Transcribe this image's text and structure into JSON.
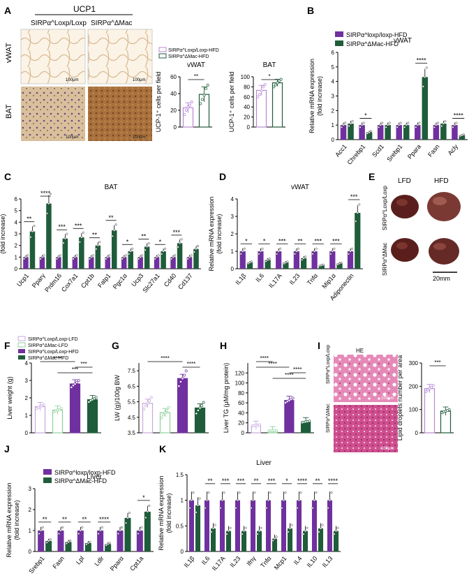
{
  "colors": {
    "purple": "#7030a0",
    "green": "#1f5c3a",
    "lpurple": "#c9a8e0",
    "lgreen": "#8fd19e",
    "he": "#d46aa3",
    "he2": "#b03a78",
    "ucp_light": "#f3e4cf",
    "ucp_dark": "#a6713c"
  },
  "legend": {
    "loxp_hfd": "SIRPα^Loxp/Loxp-HFD",
    "mac_hfd": "SIRPα^ΔMac-HFD",
    "loxp_lfd": "SIRPα^Loxp/Loxp-LFD",
    "mac_lfd": "SIRPα^ΔMac-LFD"
  },
  "panel_letters": [
    "A",
    "B",
    "C",
    "D",
    "E",
    "F",
    "G",
    "H",
    "I",
    "J",
    "K"
  ],
  "panelA": {
    "ucp1": "UCP1",
    "col1": "SIRPα^Loxp/Loxp",
    "col2": "SIRPα^ΔMac",
    "row1": "vWAT",
    "row2": "BAT",
    "scale": "100μm"
  },
  "panelE": {
    "lfd": "LFD",
    "hfd": "HFD",
    "row1": "SIRPα^Loxp/Loxp",
    "row2": "SIRPα^ΔMac",
    "scale": "20mm"
  },
  "panelI": {
    "he": "HE",
    "row1": "SIRPα^Loxp/Loxp",
    "row2": "SIRPα^ΔMac",
    "scale": "100μm"
  },
  "chart_data": [
    {
      "id": "A1",
      "type": "bar",
      "title": "vWAT",
      "ylabel": "UCP-1⁺ cells per field",
      "ylim": [
        0,
        60
      ],
      "yticks": [
        0,
        20,
        40,
        60
      ],
      "categories": [
        "SIRPα^Loxp/Loxp-HFD",
        "SIRPα^ΔMac-HFD"
      ],
      "values": [
        23,
        39
      ],
      "errors": [
        6,
        9
      ],
      "points": [
        [
          15,
          20,
          24,
          26,
          30
        ],
        [
          28,
          33,
          38,
          46,
          50
        ]
      ],
      "sig": [
        {
          "a": 0,
          "b": 1,
          "label": "**"
        }
      ]
    },
    {
      "id": "A2",
      "type": "bar",
      "title": "BAT",
      "ylabel": "UCP-1⁺ cells per field",
      "ylim": [
        0,
        100
      ],
      "yticks": [
        0,
        20,
        40,
        60,
        80,
        100
      ],
      "categories": [
        "SIRPα^Loxp/Loxp-HFD",
        "SIRPα^ΔMac-HFD"
      ],
      "values": [
        73,
        88
      ],
      "errors": [
        10,
        7
      ],
      "points": [
        [
          60,
          65,
          72,
          80,
          85
        ],
        [
          80,
          84,
          88,
          92,
          95
        ]
      ],
      "sig": [
        {
          "a": 0,
          "b": 1,
          "label": "*"
        }
      ]
    },
    {
      "id": "B",
      "type": "bar",
      "title": "vWAT",
      "ylabel": "Relative mRNA expression\n(fold increase)",
      "ylim": [
        0,
        6
      ],
      "yticks": [
        0,
        1,
        2,
        3,
        4,
        5,
        6
      ],
      "categories": [
        "Acc1",
        "Chrebp1",
        "Scd1",
        "Srebp1",
        "Ppara",
        "Fasn",
        "Acly"
      ],
      "series": [
        {
          "name": "SIRPα^loxp/loxp-HFD",
          "values": [
            1,
            1,
            1,
            1,
            1,
            1,
            1
          ]
        },
        {
          "name": "SIRPα^ΔMac-HFD",
          "values": [
            1.1,
            0.5,
            1,
            1,
            4.3,
            1.1,
            0.3
          ]
        }
      ],
      "sig": [
        {
          "cat": 1,
          "label": "*"
        },
        {
          "cat": 4,
          "label": "****"
        },
        {
          "cat": 6,
          "label": "****"
        }
      ]
    },
    {
      "id": "C",
      "type": "bar",
      "title": "BAT",
      "ylabel": "Relative mRNA expression\n(fold increase)",
      "ylim": [
        0,
        6
      ],
      "yticks": [
        0,
        1,
        2,
        3,
        4,
        5,
        6
      ],
      "categories": [
        "Ucp1",
        "Pparγ",
        "Prdm16",
        "Cox7a1",
        "Cpt1b",
        "Fatp1",
        "Pgc1α",
        "Ucp3",
        "Slc27a1",
        "Cd40",
        "Cd137"
      ],
      "series": [
        {
          "name": "SIRPα^loxp/loxp-HFD",
          "values": [
            1,
            1,
            1,
            1,
            1,
            1,
            1,
            1,
            1,
            1,
            1
          ]
        },
        {
          "name": "SIRPα^ΔMac-HFD",
          "values": [
            3.2,
            5.6,
            2.6,
            2.7,
            2.0,
            3.3,
            1.5,
            1.9,
            1.5,
            2.2,
            1.7
          ]
        }
      ],
      "sig": [
        {
          "cat": 0,
          "label": "**"
        },
        {
          "cat": 1,
          "label": "****"
        },
        {
          "cat": 2,
          "label": "***"
        },
        {
          "cat": 3,
          "label": "***"
        },
        {
          "cat": 4,
          "label": "**"
        },
        {
          "cat": 5,
          "label": "**"
        },
        {
          "cat": 6,
          "label": "*"
        },
        {
          "cat": 7,
          "label": "**"
        },
        {
          "cat": 8,
          "label": "*"
        },
        {
          "cat": 9,
          "label": "***"
        }
      ]
    },
    {
      "id": "D",
      "type": "bar",
      "title": "vWAT",
      "ylabel": "Relative mRNA expression\n(fold increase)",
      "ylim": [
        0,
        4
      ],
      "yticks": [
        0,
        1,
        2,
        3,
        4
      ],
      "categories": [
        "IL1β",
        "IL6",
        "IL17A",
        "IL23",
        "Tnfα",
        "Mip1α",
        "Adiponectin"
      ],
      "series": [
        {
          "name": "SIRPα^loxp/loxp-HFD",
          "values": [
            1,
            1,
            1,
            1,
            1,
            1,
            1
          ]
        },
        {
          "name": "SIRPα^ΔMac-HFD",
          "values": [
            0.35,
            0.5,
            0.35,
            0.6,
            0.2,
            0.3,
            3.2
          ]
        }
      ],
      "sig": [
        {
          "cat": 0,
          "label": "*"
        },
        {
          "cat": 1,
          "label": "*"
        },
        {
          "cat": 2,
          "label": "***"
        },
        {
          "cat": 3,
          "label": "**"
        },
        {
          "cat": 4,
          "label": "***"
        },
        {
          "cat": 5,
          "label": "***"
        },
        {
          "cat": 6,
          "label": "***"
        }
      ]
    },
    {
      "id": "F",
      "type": "bar",
      "ylabel": "Liver weight (g)",
      "ylim": [
        0,
        4
      ],
      "yticks": [
        0,
        1,
        2,
        3,
        4
      ],
      "categories": [
        "SIRPα^Loxp/Loxp-LFD",
        "SIRPα^ΔMac-LFD",
        "SIRPα^Loxp/Loxp-HFD",
        "SIRPα^ΔMac-HFD"
      ],
      "values": [
        1.5,
        1.3,
        2.8,
        1.9
      ],
      "sig": [
        {
          "a": 0,
          "b": 2,
          "label": "****"
        },
        {
          "a": 2,
          "b": 3,
          "label": "***"
        },
        {
          "a": 1,
          "b": 3,
          "label": "***"
        }
      ]
    },
    {
      "id": "G",
      "type": "bar",
      "ylabel": "LW (g)/100g BW",
      "ylim": [
        3.5,
        8
      ],
      "yticks": [
        3.5,
        4.5,
        5.5,
        6.5,
        7.5
      ],
      "categories": [
        "SIRPα^Loxp/Loxp-LFD",
        "SIRPα^ΔMac-LFD",
        "SIRPα^Loxp/Loxp-HFD",
        "SIRPα^ΔMac-HFD"
      ],
      "values": [
        5.4,
        4.8,
        7.0,
        5.1
      ],
      "sig": [
        {
          "a": 0,
          "b": 2,
          "label": "****"
        },
        {
          "a": 2,
          "b": 3,
          "label": "****"
        }
      ]
    },
    {
      "id": "H",
      "type": "bar",
      "ylabel": "Liver TG (μM/mg protein)",
      "ylim": [
        0,
        140
      ],
      "yticks": [
        0,
        20,
        40,
        60,
        80,
        100,
        120
      ],
      "categories": [
        "SIRPα^Loxp/Loxp-LFD",
        "SIRPα^ΔMac-LFD",
        "SIRPα^Loxp/Loxp-HFD",
        "SIRPα^ΔMac-HFD"
      ],
      "values": [
        15,
        4,
        65,
        22
      ],
      "sig": [
        {
          "a": 0,
          "b": 1,
          "label": "****"
        },
        {
          "a": 0,
          "b": 2,
          "label": "****"
        },
        {
          "a": 2,
          "b": 3,
          "label": "****"
        },
        {
          "a": 1,
          "b": 3,
          "label": "****"
        }
      ]
    },
    {
      "id": "I",
      "type": "bar",
      "ylabel": "Lipid droplets number per area",
      "ylim": [
        0,
        300
      ],
      "yticks": [
        0,
        100,
        200,
        300
      ],
      "categories": [
        "SIRPα^Loxp/Loxp-HFD",
        "SIRPα^ΔMac-HFD"
      ],
      "values": [
        190,
        93
      ],
      "sig": [
        {
          "a": 0,
          "b": 1,
          "label": "***"
        }
      ]
    },
    {
      "id": "J",
      "type": "bar",
      "title": "Liver",
      "ylabel": "Relative mRNA expression\n(fold increase)",
      "ylim": [
        0,
        3
      ],
      "yticks": [
        0,
        1,
        2,
        3
      ],
      "categories": [
        "Srebp1",
        "Fasn",
        "Lpl",
        "Ldlr",
        "Pparα",
        "Cpt1a"
      ],
      "series": [
        {
          "name": "SIRPα^loxp/loxp-HFD",
          "values": [
            1,
            1,
            1,
            1,
            1,
            1
          ]
        },
        {
          "name": "SIRPα^ΔMac-HFD",
          "values": [
            0.5,
            0.45,
            0.4,
            0.35,
            1.6,
            1.9
          ]
        }
      ],
      "sig": [
        {
          "cat": 0,
          "label": "**"
        },
        {
          "cat": 1,
          "label": "**"
        },
        {
          "cat": 2,
          "label": "**"
        },
        {
          "cat": 3,
          "label": "****"
        },
        {
          "cat": 5,
          "label": "*"
        }
      ]
    },
    {
      "id": "K",
      "type": "bar",
      "title": "Liver",
      "ylabel": "Relative mRNA expression\n(fold increase)",
      "ylim": [
        0,
        1.5
      ],
      "yticks": [
        0,
        0.5,
        1.0,
        1.5
      ],
      "categories": [
        "IL1β",
        "IL6",
        "IL17A",
        "IL23",
        "Ifnγ",
        "Tnfα",
        "Mcp1",
        "IL4",
        "IL10",
        "IL13"
      ],
      "series": [
        {
          "name": "SIRPα^loxp/loxp-HFD",
          "values": [
            1,
            1,
            1,
            1,
            1,
            1,
            1,
            1,
            1,
            1
          ]
        },
        {
          "name": "SIRPα^ΔMac-HFD",
          "values": [
            0.9,
            0.45,
            0.4,
            0.4,
            0.4,
            0.25,
            0.45,
            0.4,
            0.45,
            0.4
          ]
        }
      ],
      "sig": [
        {
          "cat": 1,
          "label": "**"
        },
        {
          "cat": 2,
          "label": "***"
        },
        {
          "cat": 3,
          "label": "***"
        },
        {
          "cat": 4,
          "label": "**"
        },
        {
          "cat": 5,
          "label": "***"
        },
        {
          "cat": 6,
          "label": "*"
        },
        {
          "cat": 7,
          "label": "****"
        },
        {
          "cat": 8,
          "label": "**"
        },
        {
          "cat": 9,
          "label": "****"
        }
      ]
    }
  ]
}
